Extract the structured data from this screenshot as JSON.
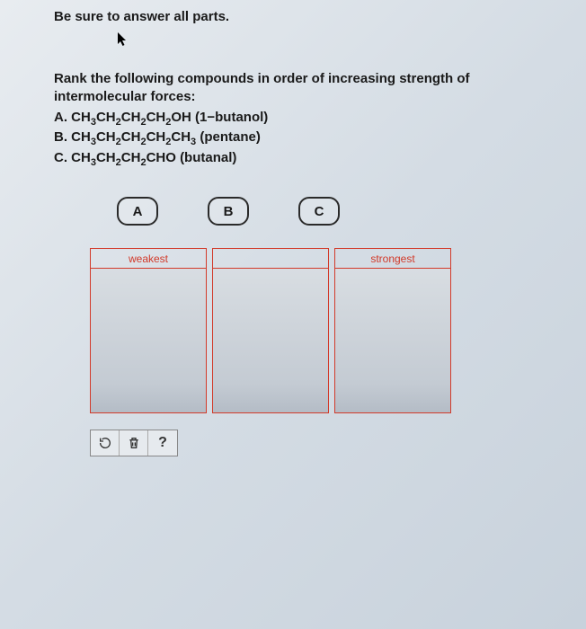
{
  "instruction": "Be sure to answer all parts.",
  "question": {
    "stem": "Rank the following compounds in order of increasing strength of intermolecular forces:",
    "options": [
      {
        "letter": "A.",
        "formula_html": "CH<sub>3</sub>CH<sub>2</sub>CH<sub>2</sub>CH<sub>2</sub>OH",
        "name": "(1−butanol)"
      },
      {
        "letter": "B.",
        "formula_html": "CH<sub>3</sub>CH<sub>2</sub>CH<sub>2</sub>CH<sub>2</sub>CH<sub>3</sub>",
        "name": "(pentane)"
      },
      {
        "letter": "C.",
        "formula_html": "CH<sub>3</sub>CH<sub>2</sub>CH<sub>2</sub>CHO",
        "name": "(butanal)"
      }
    ]
  },
  "chips": [
    "A",
    "B",
    "C"
  ],
  "dropzones": [
    {
      "label": "weakest"
    },
    {
      "label": ""
    },
    {
      "label": "strongest"
    }
  ],
  "toolbar": {
    "reset_title": "Reset",
    "delete_title": "Delete",
    "help_label": "?"
  },
  "colors": {
    "border_red": "#d23a2a",
    "text_dark": "#1a1a1a"
  }
}
